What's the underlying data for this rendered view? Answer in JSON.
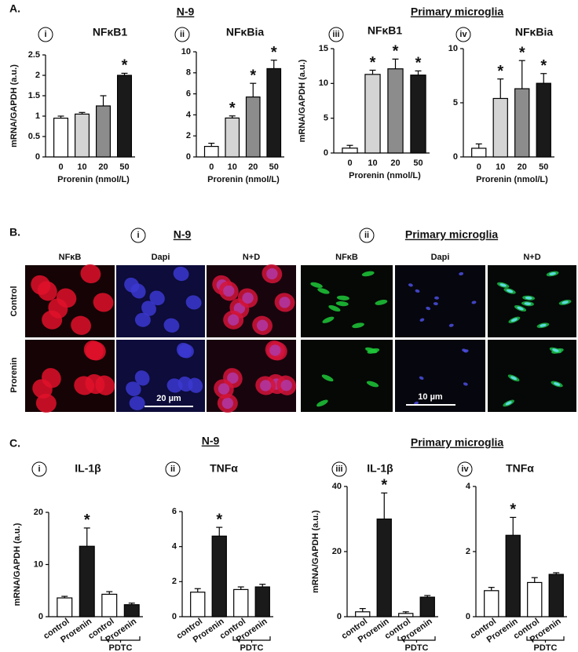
{
  "figure": {
    "labels": [
      "A.",
      "B.",
      "C."
    ],
    "group_headers": [
      "N-9",
      "Primary microglia",
      "N-9",
      "Primary microglia"
    ],
    "imaging": {
      "panels": [
        "i",
        "ii"
      ],
      "headers": [
        "N-9",
        "Primary microglia"
      ],
      "columns": [
        "NFκB",
        "Dapi",
        "N+D",
        "NFκB",
        "Dapi",
        "N+D"
      ],
      "rows": [
        "Control",
        "Prorenin"
      ],
      "scale_bars": [
        "20 µm",
        "10 µm"
      ]
    }
  },
  "chart_data": [
    {
      "type": "bar",
      "panel": "i",
      "title": "NFκB1",
      "ylabel": "mRNA/GAPDH (a.u.)",
      "xlabel": "Prorenin (nmol/L)",
      "categories": [
        "0",
        "10",
        "20",
        "50"
      ],
      "values": [
        0.95,
        1.05,
        1.25,
        2.0
      ],
      "errors": [
        0.05,
        0.04,
        0.25,
        0.05
      ],
      "colors": [
        "#ffffff",
        "#d4d4d4",
        "#8c8c8c",
        "#1a1a1a"
      ],
      "markers": [
        null,
        null,
        null,
        "*"
      ],
      "ylim": [
        0,
        2.5
      ],
      "yticks": [
        0,
        0.5,
        1,
        1.5,
        2,
        2.5
      ]
    },
    {
      "type": "bar",
      "panel": "ii",
      "title": "NFκBia",
      "xlabel": "Prorenin (nmol/L)",
      "categories": [
        "0",
        "10",
        "20",
        "50"
      ],
      "values": [
        1.0,
        3.7,
        5.7,
        8.4
      ],
      "errors": [
        0.3,
        0.2,
        1.3,
        0.8
      ],
      "colors": [
        "#ffffff",
        "#d4d4d4",
        "#8c8c8c",
        "#1a1a1a"
      ],
      "markers": [
        null,
        "*",
        "*",
        "*"
      ],
      "ylim": [
        0,
        10
      ],
      "yticks": [
        0,
        2,
        4,
        6,
        8,
        10
      ]
    },
    {
      "type": "bar",
      "panel": "iii",
      "title": "NFκB1",
      "ylabel": "mRNA/GAPDH (a.u.)",
      "xlabel": "Prorenin (nmol/L)",
      "categories": [
        "0",
        "10",
        "20",
        "50"
      ],
      "values": [
        0.7,
        11.3,
        12.1,
        11.2
      ],
      "errors": [
        0.4,
        0.6,
        1.4,
        0.6
      ],
      "colors": [
        "#ffffff",
        "#d4d4d4",
        "#8c8c8c",
        "#1a1a1a"
      ],
      "markers": [
        null,
        "*",
        "*",
        "*"
      ],
      "ylim": [
        0,
        15
      ],
      "yticks": [
        0,
        5,
        10,
        15
      ]
    },
    {
      "type": "bar",
      "panel": "iv",
      "title": "NFκBia",
      "xlabel": "Prorenin (nmol/L)",
      "categories": [
        "0",
        "10",
        "20",
        "50"
      ],
      "values": [
        0.8,
        5.4,
        6.3,
        6.8
      ],
      "errors": [
        0.4,
        1.8,
        2.6,
        0.9
      ],
      "colors": [
        "#ffffff",
        "#d4d4d4",
        "#8c8c8c",
        "#1a1a1a"
      ],
      "markers": [
        null,
        "*",
        "*",
        "*"
      ],
      "ylim": [
        0,
        10
      ],
      "yticks": [
        0,
        5,
        10
      ]
    },
    {
      "type": "bar",
      "panel": "i",
      "title": "IL-1β",
      "ylabel": "mRNA/GAPDH (a.u.)",
      "categories": [
        "control",
        "Prorenin",
        "control",
        "Prorenin"
      ],
      "category_groups": [
        null,
        null,
        "PDTC",
        "PDTC"
      ],
      "values": [
        3.6,
        13.5,
        4.3,
        2.3
      ],
      "errors": [
        0.3,
        3.5,
        0.5,
        0.3
      ],
      "colors": [
        "#ffffff",
        "#1a1a1a",
        "#ffffff",
        "#1a1a1a"
      ],
      "markers": [
        null,
        "*",
        null,
        null
      ],
      "ylim": [
        0,
        20
      ],
      "yticks": [
        0,
        10,
        20
      ]
    },
    {
      "type": "bar",
      "panel": "ii",
      "title": "TNFα",
      "categories": [
        "control",
        "Prorenin",
        "control",
        "Prorenin"
      ],
      "category_groups": [
        null,
        null,
        "PDTC",
        "PDTC"
      ],
      "values": [
        1.4,
        4.6,
        1.55,
        1.7
      ],
      "errors": [
        0.2,
        0.5,
        0.15,
        0.15
      ],
      "colors": [
        "#ffffff",
        "#1a1a1a",
        "#ffffff",
        "#1a1a1a"
      ],
      "markers": [
        null,
        "*",
        null,
        null
      ],
      "ylim": [
        0,
        6
      ],
      "yticks": [
        0,
        2,
        4,
        6
      ]
    },
    {
      "type": "bar",
      "panel": "iii",
      "title": "IL-1β",
      "ylabel": "mRNA/GAPDH (a.u.)",
      "categories": [
        "control",
        "Prorenin",
        "control",
        "Prorenin"
      ],
      "category_groups": [
        null,
        null,
        "PDTC",
        "PDTC"
      ],
      "values": [
        1.5,
        30,
        1.0,
        6.0
      ],
      "errors": [
        1.0,
        8.0,
        0.5,
        0.5
      ],
      "colors": [
        "#ffffff",
        "#1a1a1a",
        "#ffffff",
        "#1a1a1a"
      ],
      "markers": [
        null,
        "*",
        null,
        null
      ],
      "ylim": [
        0,
        40
      ],
      "yticks": [
        0,
        20,
        40
      ]
    },
    {
      "type": "bar",
      "panel": "iv",
      "title": "TNFα",
      "categories": [
        "control",
        "Prorenin",
        "control",
        "Prorenin"
      ],
      "category_groups": [
        null,
        null,
        "PDTC",
        "PDTC"
      ],
      "values": [
        0.8,
        2.5,
        1.05,
        1.3
      ],
      "errors": [
        0.1,
        0.55,
        0.15,
        0.05
      ],
      "colors": [
        "#ffffff",
        "#1a1a1a",
        "#ffffff",
        "#1a1a1a"
      ],
      "markers": [
        null,
        "*",
        null,
        null
      ],
      "ylim": [
        0,
        4
      ],
      "yticks": [
        0,
        2,
        4
      ]
    }
  ]
}
